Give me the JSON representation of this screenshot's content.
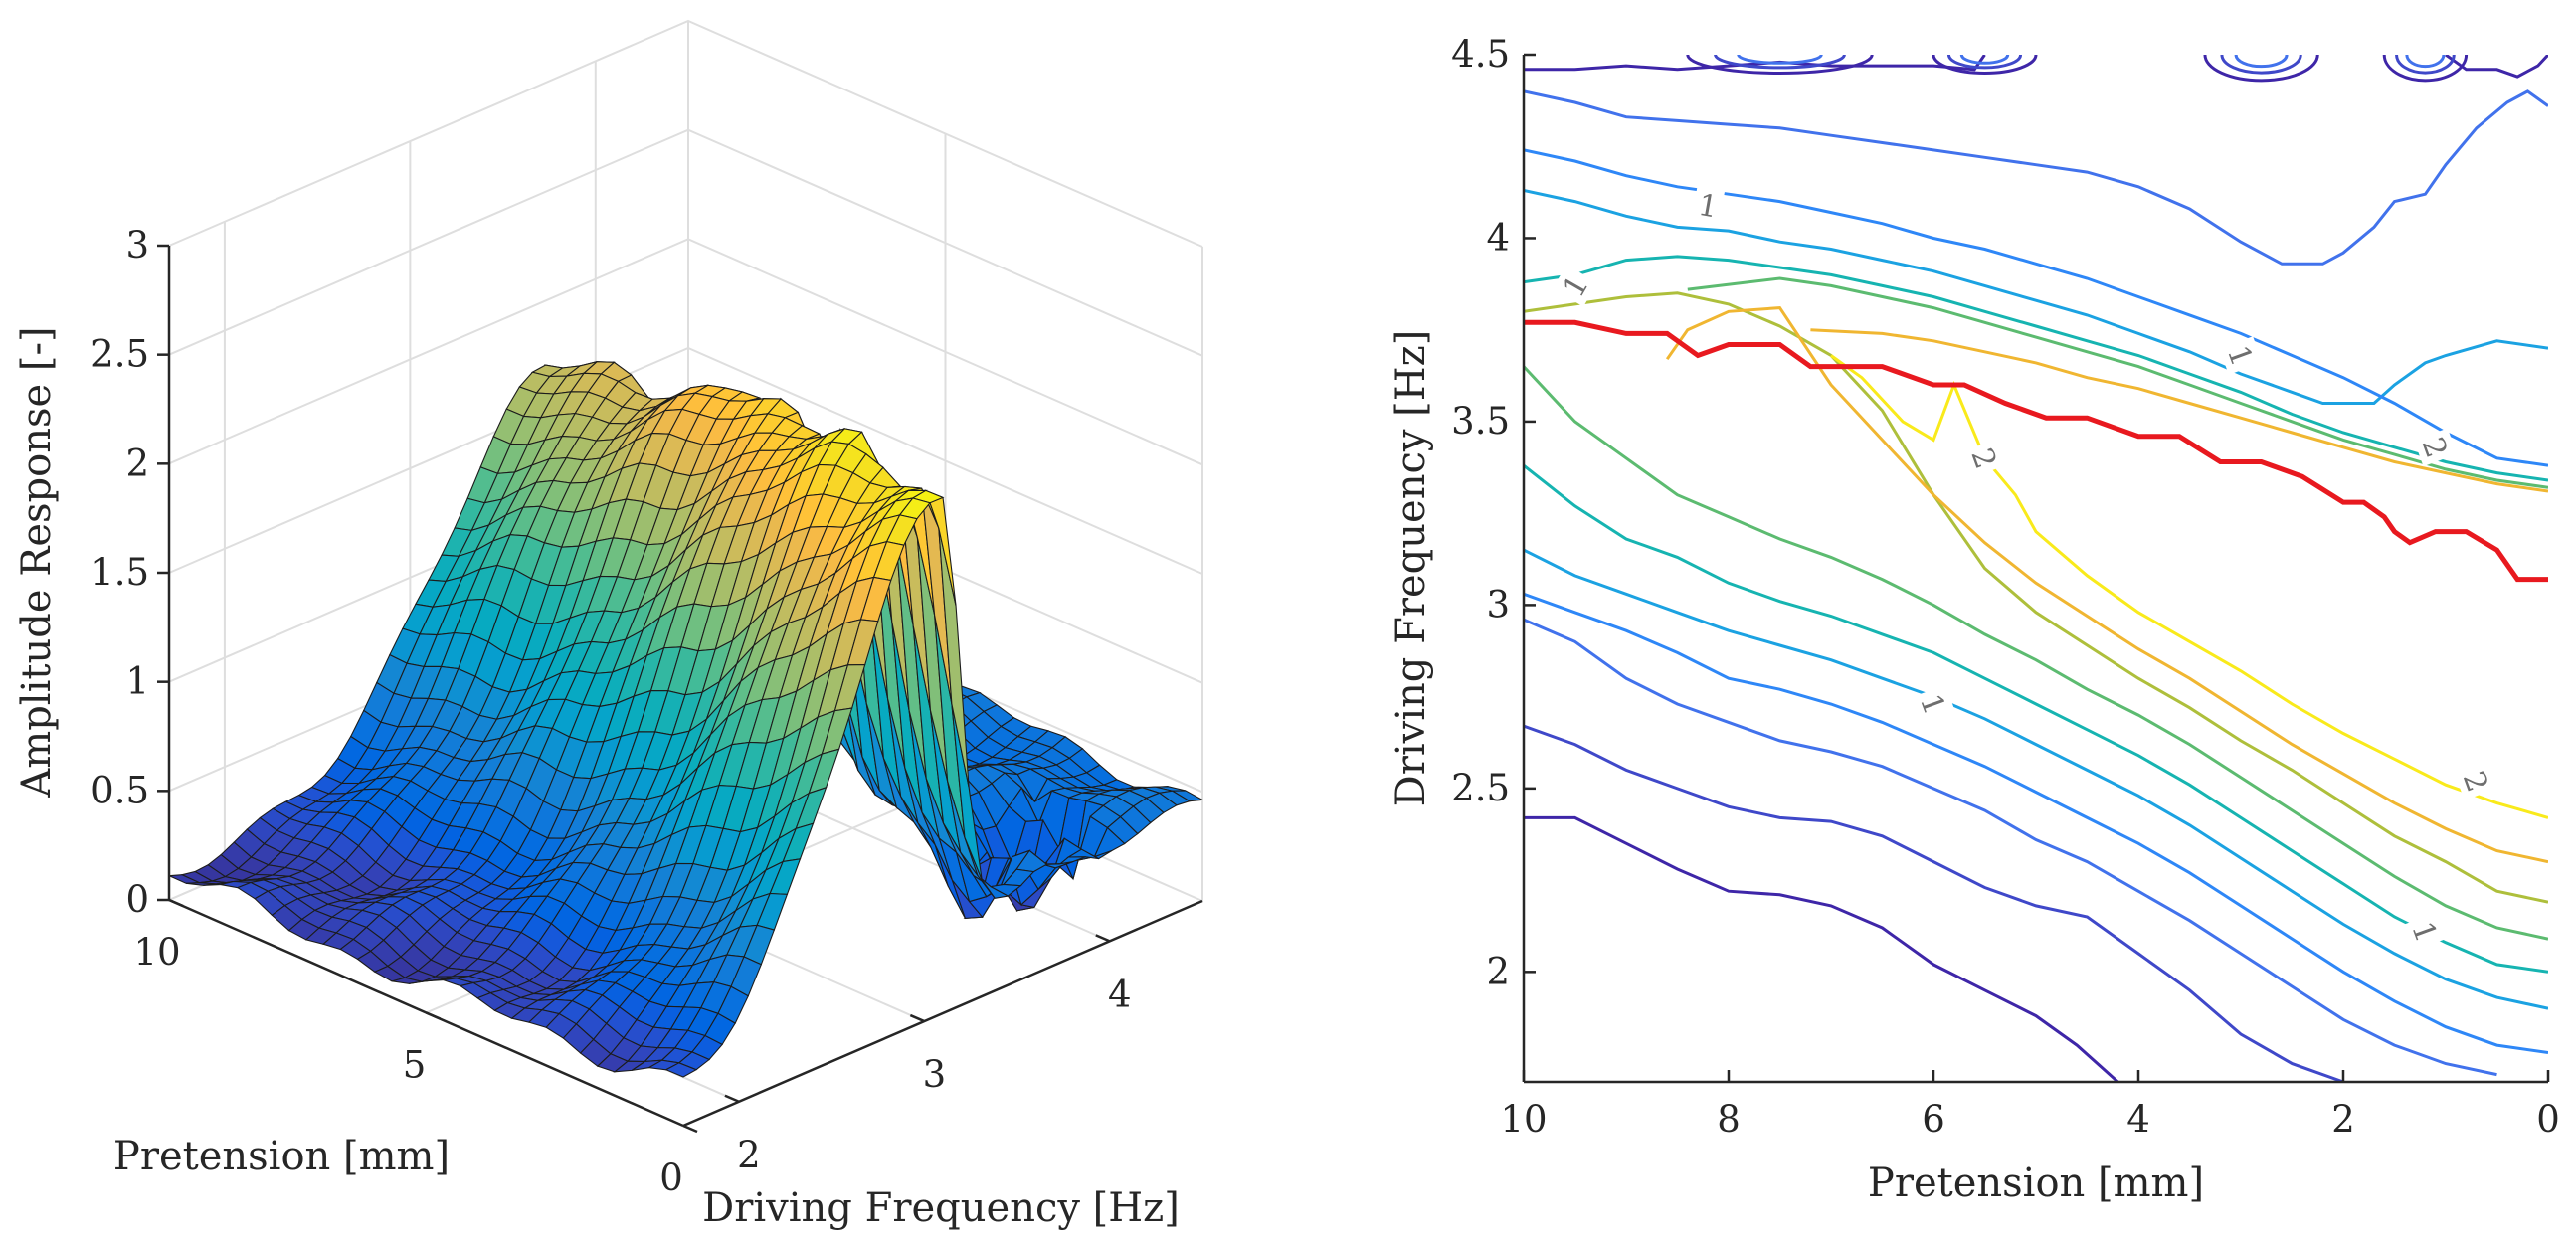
{
  "chart_data": [
    {
      "type": "surface",
      "title": "",
      "xlabel": "Driving Frequency [Hz]",
      "ylabel": "Pretension [mm]",
      "zlabel": "Amplitude Response [-]",
      "xlim": [
        1.7,
        4.5
      ],
      "ylim": [
        0,
        10
      ],
      "zlim": [
        0,
        3
      ],
      "x_ticks": [
        "2",
        "3",
        "4"
      ],
      "y_ticks": [
        "0",
        "5",
        "10"
      ],
      "z_ticks": [
        "0",
        "0.5",
        "1",
        "1.5",
        "2",
        "2.5",
        "3"
      ],
      "grid": true,
      "colormap": "parula",
      "resonance_ridge": [
        {
          "pretension": 0,
          "frequency": 3.1,
          "peak": 2.35
        },
        {
          "pretension": 2,
          "frequency": 3.28,
          "peak": 2.3
        },
        {
          "pretension": 4,
          "frequency": 3.48,
          "peak": 2.2
        },
        {
          "pretension": 6,
          "frequency": 3.62,
          "peak": 2.05
        },
        {
          "pretension": 8,
          "frequency": 3.7,
          "peak": 1.85
        },
        {
          "pretension": 10,
          "frequency": 3.77,
          "peak": 1.7
        }
      ]
    },
    {
      "type": "contour",
      "title": "",
      "xlabel": "Pretension [mm]",
      "ylabel": "Driving Frequency [Hz]",
      "xlim": [
        10,
        0
      ],
      "ylim": [
        1.7,
        4.5
      ],
      "x_ticks": [
        "10",
        "8",
        "6",
        "4",
        "2",
        "0"
      ],
      "y_ticks": [
        "2",
        "2.5",
        "3",
        "3.5",
        "4",
        "4.5"
      ],
      "contour_labels": [
        "1",
        "1",
        "1",
        "1",
        "1",
        "2",
        "2",
        "2"
      ],
      "line_color": "#e8191f",
      "red_line": {
        "x": [
          10,
          9.5,
          9,
          8.6,
          8.3,
          8,
          7.5,
          7.2,
          7,
          6.5,
          6,
          5.7,
          5.3,
          4.9,
          4.5,
          4,
          3.6,
          3.2,
          2.8,
          2.4,
          2,
          1.8,
          1.6,
          1.5,
          1.35,
          1.1,
          0.8,
          0.5,
          0.3,
          0
        ],
        "y": [
          3.77,
          3.77,
          3.74,
          3.74,
          3.68,
          3.71,
          3.71,
          3.65,
          3.65,
          3.65,
          3.6,
          3.6,
          3.55,
          3.51,
          3.51,
          3.46,
          3.46,
          3.39,
          3.39,
          3.35,
          3.28,
          3.28,
          3.24,
          3.2,
          3.17,
          3.2,
          3.2,
          3.15,
          3.07,
          3.07
        ]
      },
      "levels": [
        {
          "level": 0.2,
          "color": "#3e26a8",
          "x": [
            10,
            9.5,
            9,
            8.5,
            8,
            7.5,
            7,
            6.5,
            6,
            5.5,
            5,
            4.6,
            4.2
          ],
          "y": [
            2.42,
            2.42,
            2.35,
            2.28,
            2.22,
            2.21,
            2.18,
            2.12,
            2.02,
            1.95,
            1.88,
            1.8,
            1.7
          ]
        },
        {
          "level": 0.4,
          "color": "#3f48c9",
          "x": [
            10,
            9.5,
            9,
            8.5,
            8,
            7.5,
            7,
            6.5,
            6,
            5.5,
            5,
            4.5,
            4,
            3.5,
            3,
            2.5,
            2
          ],
          "y": [
            2.67,
            2.62,
            2.55,
            2.5,
            2.45,
            2.42,
            2.41,
            2.37,
            2.3,
            2.23,
            2.18,
            2.15,
            2.05,
            1.95,
            1.83,
            1.75,
            1.7
          ]
        },
        {
          "level": 0.6,
          "color": "#4172ec",
          "x": [
            10,
            9.5,
            9,
            8.5,
            8,
            7.5,
            7,
            6.5,
            6,
            5.5,
            5,
            4.5,
            4,
            3.5,
            3,
            2.5,
            2,
            1.5,
            1,
            0.5
          ],
          "y": [
            2.96,
            2.9,
            2.8,
            2.73,
            2.68,
            2.63,
            2.6,
            2.56,
            2.5,
            2.44,
            2.36,
            2.3,
            2.22,
            2.14,
            2.05,
            1.96,
            1.87,
            1.8,
            1.75,
            1.72
          ]
        },
        {
          "level": 0.8,
          "color": "#2e87f7",
          "x": [
            10,
            9.5,
            9,
            8.5,
            8,
            7.5,
            7,
            6.5,
            6,
            5.5,
            5,
            4.5,
            4,
            3.5,
            3,
            2.5,
            2,
            1.5,
            1,
            0.5,
            0
          ],
          "y": [
            3.03,
            2.98,
            2.93,
            2.87,
            2.8,
            2.77,
            2.73,
            2.68,
            2.62,
            2.56,
            2.49,
            2.42,
            2.35,
            2.27,
            2.18,
            2.09,
            2.0,
            1.92,
            1.85,
            1.8,
            1.78
          ]
        },
        {
          "level": 1.0,
          "color": "#1ba2e2",
          "x": [
            10,
            9.5,
            9,
            8.5,
            8,
            7.5,
            7,
            6.5,
            6,
            5.5,
            5,
            4.5,
            4,
            3.5,
            3,
            2.5,
            2,
            1.5,
            1,
            0.5,
            0
          ],
          "y": [
            3.15,
            3.08,
            3.03,
            2.98,
            2.93,
            2.89,
            2.85,
            2.8,
            2.75,
            2.69,
            2.62,
            2.55,
            2.48,
            2.4,
            2.31,
            2.22,
            2.13,
            2.05,
            1.98,
            1.93,
            1.9
          ]
        },
        {
          "level": 1.2,
          "color": "#16b4b1",
          "x": [
            10,
            9.5,
            9,
            8.5,
            8,
            7.5,
            7,
            6.5,
            6,
            5.5,
            5,
            4.5,
            4,
            3.5,
            3,
            2.5,
            2,
            1.5,
            1,
            0.5,
            0
          ],
          "y": [
            3.38,
            3.27,
            3.18,
            3.13,
            3.06,
            3.01,
            2.97,
            2.92,
            2.87,
            2.8,
            2.73,
            2.66,
            2.59,
            2.51,
            2.42,
            2.33,
            2.24,
            2.15,
            2.08,
            2.02,
            2.0
          ]
        },
        {
          "level": 1.4,
          "color": "#5cbb70",
          "x": [
            10,
            9.5,
            9,
            8.5,
            8,
            7.5,
            7,
            6.5,
            6,
            5.5,
            5,
            4.5,
            4,
            3.5,
            3,
            2.5,
            2,
            1.5,
            1,
            0.5,
            0
          ],
          "y": [
            3.65,
            3.5,
            3.4,
            3.3,
            3.24,
            3.18,
            3.13,
            3.07,
            3.0,
            2.92,
            2.85,
            2.77,
            2.7,
            2.62,
            2.53,
            2.44,
            2.35,
            2.26,
            2.18,
            2.12,
            2.09
          ]
        },
        {
          "level": 1.6,
          "color": "#aebf3b",
          "x": [
            10,
            9.5,
            9,
            8.5,
            8,
            7.5,
            7,
            6.5,
            6,
            5.5,
            5,
            4.5,
            4,
            3.5,
            3,
            2.5,
            2,
            1.5,
            1,
            0.5,
            0
          ],
          "y": [
            3.8,
            3.82,
            3.84,
            3.85,
            3.82,
            3.76,
            3.68,
            3.53,
            3.3,
            3.1,
            2.98,
            2.89,
            2.8,
            2.72,
            2.63,
            2.55,
            2.46,
            2.37,
            2.3,
            2.22,
            2.19
          ]
        },
        {
          "level": 1.8,
          "color": "#f0b631",
          "x": [
            8.6,
            8.4,
            8,
            7.5,
            7,
            6.5,
            6,
            5.5,
            5,
            4.5,
            4,
            3.5,
            3,
            2.5,
            2,
            1.5,
            1,
            0.5,
            0
          ],
          "y": [
            3.67,
            3.75,
            3.8,
            3.81,
            3.6,
            3.45,
            3.3,
            3.17,
            3.06,
            2.97,
            2.88,
            2.8,
            2.71,
            2.62,
            2.54,
            2.46,
            2.39,
            2.33,
            2.3
          ]
        },
        {
          "level": 2.0,
          "color": "#f9ea1b",
          "x": [
            7.0,
            6.7,
            6.3,
            6.0,
            5.8,
            5.5,
            5.2,
            5.0,
            4.5,
            4,
            3.5,
            3,
            2.5,
            2,
            1.5,
            1,
            0.5,
            0
          ],
          "y": [
            3.68,
            3.62,
            3.5,
            3.45,
            3.6,
            3.4,
            3.3,
            3.2,
            3.08,
            2.98,
            2.9,
            2.82,
            2.73,
            2.65,
            2.58,
            2.51,
            2.46,
            2.42
          ]
        },
        {
          "level": 1.8,
          "color": "#f0b631",
          "x": [
            7.2,
            6.5,
            6,
            5.5,
            5,
            4.5,
            4,
            3.5,
            3,
            2.5,
            2,
            1.5,
            1,
            0.5,
            0
          ],
          "y": [
            3.75,
            3.74,
            3.72,
            3.69,
            3.66,
            3.62,
            3.59,
            3.55,
            3.51,
            3.47,
            3.43,
            3.39,
            3.36,
            3.33,
            3.31
          ]
        },
        {
          "level": 1.4,
          "color": "#5cbb70",
          "x": [
            8.4,
            7.5,
            7,
            6.5,
            6,
            5.5,
            5,
            4.5,
            4,
            3.5,
            3,
            2.5,
            2,
            1.5,
            1,
            0.5,
            0
          ],
          "y": [
            3.86,
            3.89,
            3.87,
            3.84,
            3.81,
            3.77,
            3.73,
            3.69,
            3.65,
            3.6,
            3.55,
            3.5,
            3.45,
            3.41,
            3.37,
            3.34,
            3.32
          ]
        },
        {
          "level": 1.0,
          "color": "#16b4b1",
          "x": [
            10,
            9.5,
            9,
            8.5,
            8,
            7.5,
            7,
            6.5,
            6,
            5.5,
            5,
            4.5,
            4,
            3.5,
            3,
            2.5,
            2,
            1.5,
            1,
            0.5,
            0
          ],
          "y": [
            3.88,
            3.9,
            3.94,
            3.95,
            3.94,
            3.92,
            3.9,
            3.87,
            3.84,
            3.8,
            3.76,
            3.72,
            3.68,
            3.63,
            3.58,
            3.52,
            3.47,
            3.43,
            3.39,
            3.36,
            3.34
          ]
        },
        {
          "level": 0.8,
          "color": "#1ba2e2",
          "x": [
            10,
            9.5,
            9,
            8.5,
            8,
            7.5,
            7,
            6.5,
            6,
            5.5,
            5,
            4.5,
            4,
            3.5,
            3,
            2.5,
            2.2,
            2,
            1.7,
            1.5,
            1.2,
            1,
            0.5,
            0
          ],
          "y": [
            4.13,
            4.1,
            4.06,
            4.03,
            4.02,
            3.99,
            3.97,
            3.94,
            3.91,
            3.87,
            3.83,
            3.79,
            3.74,
            3.69,
            3.63,
            3.58,
            3.55,
            3.55,
            3.55,
            3.6,
            3.66,
            3.68,
            3.72,
            3.7
          ]
        },
        {
          "level": 0.6,
          "color": "#2e87f7",
          "x": [
            10,
            9.5,
            9,
            8.5,
            8,
            7.5,
            7,
            6.5,
            6,
            5.5,
            5,
            4.5,
            4,
            3.5,
            3,
            2.5,
            2,
            1.5,
            1,
            0.5,
            0
          ],
          "y": [
            4.24,
            4.21,
            4.17,
            4.14,
            4.12,
            4.1,
            4.07,
            4.04,
            4.0,
            3.97,
            3.93,
            3.89,
            3.84,
            3.79,
            3.74,
            3.68,
            3.62,
            3.55,
            3.47,
            3.4,
            3.38
          ]
        },
        {
          "level": 0.4,
          "color": "#4172ec",
          "x": [
            10,
            9.5,
            9,
            8.5,
            8,
            7.5,
            7,
            6.5,
            6,
            5.5,
            5,
            4.5,
            4,
            3.5,
            3,
            2.6,
            2.2,
            2,
            1.7,
            1.5,
            1.2,
            1,
            0.7,
            0.4,
            0.2,
            0
          ],
          "y": [
            4.4,
            4.37,
            4.33,
            4.32,
            4.31,
            4.3,
            4.28,
            4.26,
            4.24,
            4.22,
            4.2,
            4.18,
            4.14,
            4.08,
            3.99,
            3.93,
            3.93,
            3.96,
            4.03,
            4.1,
            4.12,
            4.2,
            4.3,
            4.37,
            4.4,
            4.36
          ]
        },
        {
          "level": 0.2,
          "color": "#3e26a8",
          "x": [
            10,
            9.5,
            9,
            8.5,
            8,
            7.5,
            7,
            6.5,
            6,
            5.6,
            5.5
          ],
          "y": [
            4.46,
            4.46,
            4.47,
            4.46,
            4.47,
            4.48,
            4.47,
            4.47,
            4.47,
            4.46,
            4.5
          ]
        },
        {
          "level": 0.2,
          "color": "#3e26a8",
          "x": [
            1.0,
            0.8,
            0.5,
            0.3,
            0.1,
            0
          ],
          "y": [
            4.5,
            4.46,
            4.46,
            4.44,
            4.47,
            4.5
          ]
        }
      ]
    }
  ]
}
